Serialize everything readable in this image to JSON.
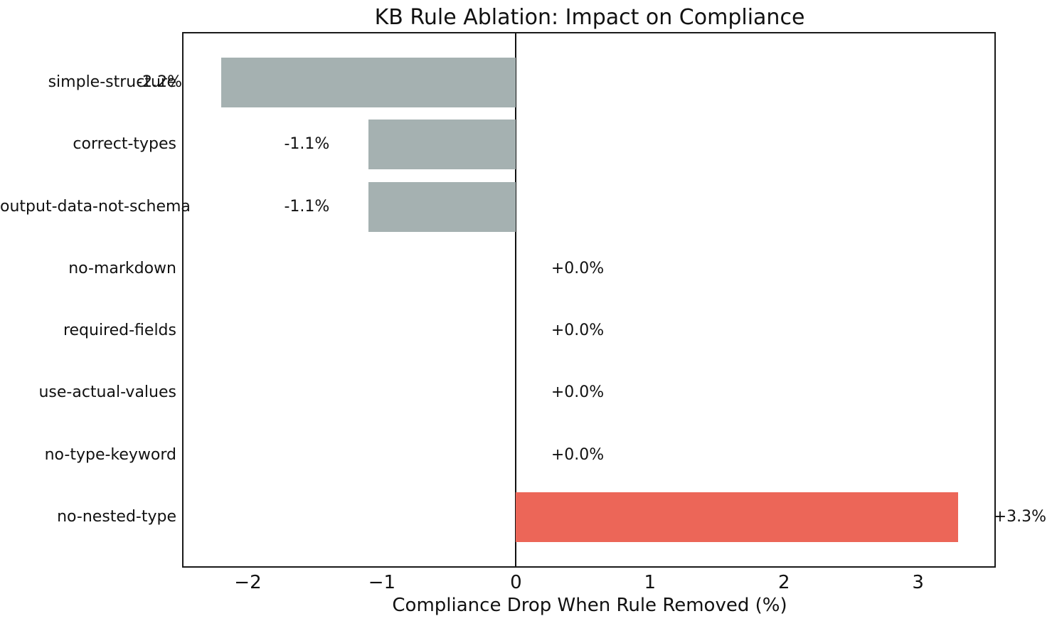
{
  "title": "KB Rule Ablation: Impact on Compliance",
  "chart_data": {
    "type": "bar",
    "orientation": "horizontal",
    "title": "KB Rule Ablation: Impact on Compliance",
    "xlabel": "Compliance Drop When Rule Removed (%)",
    "ylabel": "",
    "categories": [
      "simple-structure",
      "correct-types",
      "output-data-not-schema",
      "no-markdown",
      "required-fields",
      "use-actual-values",
      "no-type-keyword",
      "no-nested-type"
    ],
    "values": [
      -2.2,
      -1.1,
      -1.1,
      0.0,
      0.0,
      0.0,
      0.0,
      3.3
    ],
    "bar_labels": [
      "-2.2%",
      "-1.1%",
      "-1.1%",
      "+0.0%",
      "+0.0%",
      "+0.0%",
      "+0.0%",
      "+3.3%"
    ],
    "xlim": [
      -2.48,
      3.58
    ],
    "xticks": [
      -2,
      -1,
      0,
      1,
      2,
      3
    ],
    "xtick_labels": [
      "−2",
      "−1",
      "0",
      "1",
      "2",
      "3"
    ],
    "grid": false,
    "legend": null,
    "zero_reference_line": true,
    "colors": {
      "negative_bar": "#a5b1b1",
      "positive_bar": "#ec6658",
      "zero_line": "#111111",
      "spine": "#1a1a1a",
      "text": "#111111"
    }
  }
}
